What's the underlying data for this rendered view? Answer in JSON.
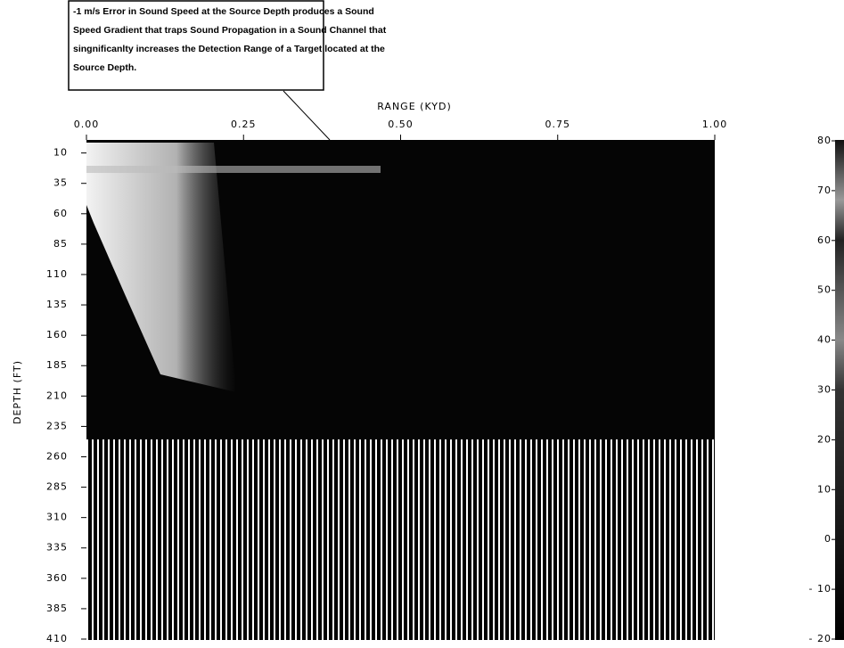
{
  "chart_data": {
    "type": "heatmap",
    "annotation": [
      "-1 m/s Error in Sound Speed at the Source Depth produces a Sound",
      "Speed Gradient that traps Sound Propagation in a Sound Channel that",
      "singnificanlty increases the Detection Range of a Target located at the",
      "Source Depth."
    ],
    "x_label": "RANGE (KYD)",
    "y_label": "DEPTH (FT)",
    "xlim": [
      0,
      1
    ],
    "xticks": [
      {
        "value": 0,
        "label": "0.00"
      },
      {
        "value": 0.25,
        "label": "0.25"
      },
      {
        "value": 0.5,
        "label": "0.50"
      },
      {
        "value": 0.75,
        "label": "0.75"
      },
      {
        "value": 1,
        "label": "1.00"
      }
    ],
    "ylim": [
      0,
      410
    ],
    "yticks": [
      10,
      35,
      60,
      85,
      110,
      135,
      160,
      185,
      210,
      235,
      260,
      285,
      310,
      335,
      360,
      385,
      410
    ],
    "clim": [
      -20,
      80
    ],
    "cticks": [
      80,
      70,
      60,
      50,
      40,
      30,
      20,
      10,
      0,
      {
        "value": -10,
        "label": "- 10"
      },
      {
        "value": -20,
        "label": "- 20"
      }
    ]
  }
}
